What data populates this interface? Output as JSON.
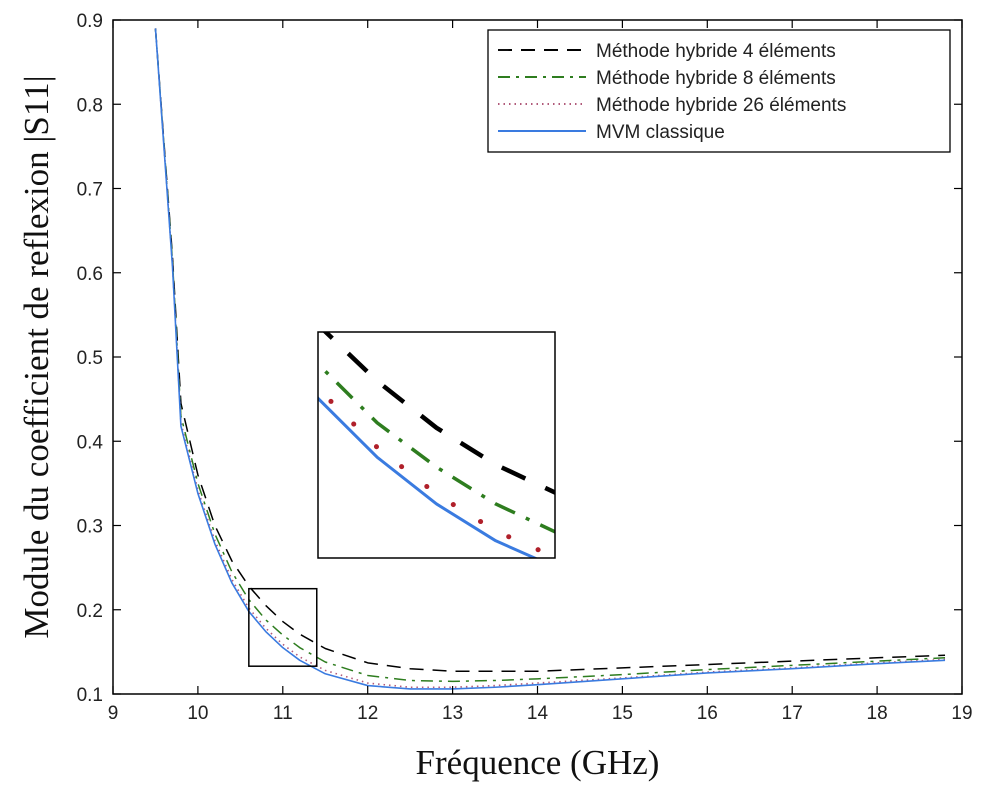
{
  "chart_data": {
    "type": "line",
    "xlabel": "Fréquence (GHz)",
    "ylabel": "Module du coefficient de reflexion |S11|",
    "xlim": [
      9,
      19
    ],
    "ylim": [
      0.1,
      0.9
    ],
    "xticks": [
      9,
      10,
      11,
      12,
      13,
      14,
      15,
      16,
      17,
      18,
      19
    ],
    "yticks": [
      0.1,
      0.2,
      0.3,
      0.4,
      0.5,
      0.6,
      0.7,
      0.8,
      0.9
    ],
    "grid": false,
    "legend_position": "top-right",
    "series": [
      {
        "name": "Méthode hybride 4 éléments",
        "color": "#000000",
        "dash": "dashed",
        "x": [
          9.5,
          9.7,
          9.8,
          10.0,
          10.2,
          10.4,
          10.6,
          10.8,
          11.0,
          11.2,
          11.5,
          12.0,
          12.5,
          13.0,
          13.5,
          14.0,
          15.0,
          16.0,
          17.0,
          18.0,
          18.8
        ],
        "y": [
          0.89,
          0.62,
          0.445,
          0.36,
          0.3,
          0.258,
          0.228,
          0.205,
          0.186,
          0.171,
          0.154,
          0.137,
          0.13,
          0.127,
          0.127,
          0.127,
          0.131,
          0.135,
          0.139,
          0.143,
          0.146
        ]
      },
      {
        "name": "Méthode hybride 8 éléments",
        "color": "#2e7d1f",
        "dash": "dashdot",
        "x": [
          9.5,
          9.7,
          9.8,
          10.0,
          10.2,
          10.4,
          10.6,
          10.8,
          11.0,
          11.2,
          11.5,
          12.0,
          12.5,
          13.0,
          13.5,
          14.0,
          15.0,
          16.0,
          17.0,
          18.0,
          18.8
        ],
        "y": [
          0.89,
          0.615,
          0.43,
          0.35,
          0.29,
          0.245,
          0.212,
          0.188,
          0.17,
          0.155,
          0.138,
          0.122,
          0.116,
          0.115,
          0.116,
          0.118,
          0.123,
          0.129,
          0.134,
          0.139,
          0.143
        ]
      },
      {
        "name": "Méthode hybride 26 éléments",
        "color": "#b05a7a",
        "dash": "dotted",
        "x": [
          9.5,
          9.7,
          9.8,
          10.0,
          10.2,
          10.4,
          10.6,
          10.8,
          11.0,
          11.2,
          11.5,
          12.0,
          12.5,
          13.0,
          13.5,
          14.0,
          15.0,
          16.0,
          17.0,
          18.0,
          18.8
        ],
        "y": [
          0.89,
          0.61,
          0.422,
          0.342,
          0.282,
          0.236,
          0.202,
          0.178,
          0.159,
          0.144,
          0.128,
          0.113,
          0.108,
          0.108,
          0.11,
          0.113,
          0.119,
          0.126,
          0.131,
          0.137,
          0.141
        ]
      },
      {
        "name": "MVM classique",
        "color": "#3a7be0",
        "dash": "solid",
        "x": [
          9.5,
          9.7,
          9.8,
          10.0,
          10.2,
          10.4,
          10.6,
          10.8,
          11.0,
          11.2,
          11.5,
          12.0,
          12.5,
          13.0,
          13.5,
          14.0,
          15.0,
          16.0,
          17.0,
          18.0,
          18.8
        ],
        "y": [
          0.89,
          0.608,
          0.418,
          0.338,
          0.278,
          0.232,
          0.198,
          0.174,
          0.155,
          0.14,
          0.124,
          0.11,
          0.106,
          0.106,
          0.108,
          0.111,
          0.118,
          0.125,
          0.13,
          0.136,
          0.14
        ]
      }
    ],
    "zoom_region": {
      "x": [
        10.6,
        11.4
      ],
      "y": [
        0.133,
        0.225
      ]
    }
  }
}
